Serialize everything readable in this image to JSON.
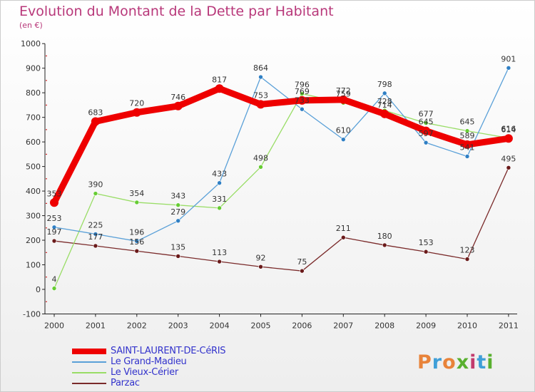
{
  "header": {
    "title": "Evolution du Montant de la Dette par Habitant",
    "unit": "(en €)"
  },
  "logo": {
    "text": "Proxiti",
    "colors": [
      "#e8833a",
      "#3f9fd8",
      "#e8833a",
      "#59b02f",
      "#c23b6d",
      "#3f9fd8",
      "#59b02f"
    ]
  },
  "chart_data": {
    "type": "line",
    "title": "Evolution du Montant de la Dette par Habitant",
    "ylabel": "(en €)",
    "xlabel": "",
    "ylim": [
      -100,
      1000
    ],
    "yticks": [
      -100,
      0,
      100,
      200,
      300,
      400,
      500,
      600,
      700,
      800,
      900,
      1000
    ],
    "x": [
      "2000",
      "2001",
      "2002",
      "2003",
      "2004",
      "2005",
      "2006",
      "2007",
      "2008",
      "2009",
      "2010",
      "2011"
    ],
    "grid": false,
    "legend_position": "bottom-left",
    "series": [
      {
        "name": "SAINT-LAURENT-DE-CéRIS",
        "color": "#ee0000",
        "emphasis": true,
        "values": [
          353,
          683,
          720,
          746,
          817,
          753,
          769,
          772,
          714,
          645,
          589,
          614
        ]
      },
      {
        "name": "Le Grand-Madieu",
        "color": "#5aa0d8",
        "marker": "#2f7fc4",
        "values": [
          253,
          225,
          196,
          279,
          433,
          864,
          733,
          610,
          798,
          597,
          541,
          901
        ]
      },
      {
        "name": "Le Vieux-Cérier",
        "color": "#99dd66",
        "marker": "#66cc33",
        "values": [
          4,
          390,
          354,
          343,
          331,
          498,
          796,
          759,
          728,
          677,
          645,
          616
        ]
      },
      {
        "name": "Parzac",
        "color": "#7a2a2a",
        "marker": "#6a1a1a",
        "values": [
          197,
          177,
          156,
          135,
          113,
          92,
          75,
          211,
          180,
          153,
          123,
          495
        ]
      }
    ]
  }
}
